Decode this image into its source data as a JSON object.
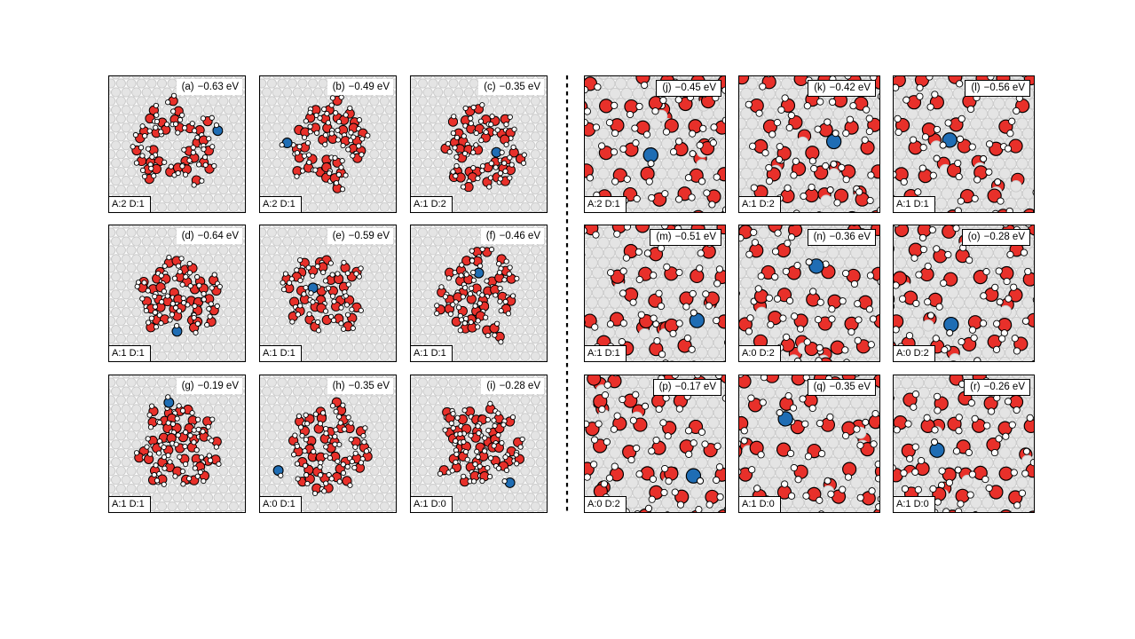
{
  "figure": {
    "description": "Adsorption structures of an ion in water layers on a metal surface, with adsorption energies and hydrogen-bond acceptor/donor counts",
    "colors": {
      "oxygen": "#e8302a",
      "hydrogen": "#ffffff",
      "ion": "#1f6db4",
      "substrate": "#e4e4e4",
      "substrate_edge": "#cbcbcb",
      "outline": "#000000",
      "panel_border": "#000000"
    },
    "divider_style": "vertical dashed line",
    "panels": [
      {
        "id": "a",
        "label": "(a)",
        "energy": "−0.63 eV",
        "acceptors_donors": "A:2 D:1",
        "side": "left",
        "blue": [
          0.8,
          0.4
        ]
      },
      {
        "id": "b",
        "label": "(b)",
        "energy": "−0.49 eV",
        "acceptors_donors": "A:2 D:1",
        "side": "left",
        "blue": [
          0.2,
          0.49
        ]
      },
      {
        "id": "c",
        "label": "(c)",
        "energy": "−0.35 eV",
        "acceptors_donors": "A:1 D:2",
        "side": "left",
        "blue": [
          0.63,
          0.56
        ]
      },
      {
        "id": "d",
        "label": "(d)",
        "energy": "−0.64 eV",
        "acceptors_donors": "A:1 D:1",
        "side": "left",
        "blue": [
          0.5,
          0.78
        ]
      },
      {
        "id": "e",
        "label": "(e)",
        "energy": "−0.59 eV",
        "acceptors_donors": "A:1 D:1",
        "side": "left",
        "blue": [
          0.39,
          0.46
        ]
      },
      {
        "id": "f",
        "label": "(f)",
        "energy": "−0.46 eV",
        "acceptors_donors": "A:1 D:1",
        "side": "left",
        "blue": [
          0.5,
          0.35
        ]
      },
      {
        "id": "g",
        "label": "(g)",
        "energy": "−0.19 eV",
        "acceptors_donors": "A:1 D:1",
        "side": "left",
        "blue": [
          0.44,
          0.2
        ]
      },
      {
        "id": "h",
        "label": "(h)",
        "energy": "−0.35 eV",
        "acceptors_donors": "A:0 D:1",
        "side": "left",
        "blue": [
          0.135,
          0.7
        ]
      },
      {
        "id": "i",
        "label": "(i)",
        "energy": "−0.28 eV",
        "acceptors_donors": "A:1 D:0",
        "side": "left",
        "blue": [
          0.73,
          0.79
        ]
      },
      {
        "id": "j",
        "label": "(j)",
        "energy": "−0.45 eV",
        "acceptors_donors": "A:2 D:1",
        "side": "right",
        "blue": [
          0.47,
          0.58
        ]
      },
      {
        "id": "k",
        "label": "(k)",
        "energy": "−0.42 eV",
        "acceptors_donors": "A:1 D:2",
        "side": "right",
        "blue": [
          0.675,
          0.48
        ]
      },
      {
        "id": "l",
        "label": "(l)",
        "energy": "−0.56 eV",
        "acceptors_donors": "A:1 D:1",
        "side": "right",
        "blue": [
          0.4,
          0.47
        ]
      },
      {
        "id": "m",
        "label": "(m)",
        "energy": "−0.51 eV",
        "acceptors_donors": "A:1 D:1",
        "side": "right",
        "blue": [
          0.8,
          0.7
        ]
      },
      {
        "id": "n",
        "label": "(n)",
        "energy": "−0.36 eV",
        "acceptors_donors": "A:0 D:2",
        "side": "right",
        "blue": [
          0.55,
          0.3
        ]
      },
      {
        "id": "o",
        "label": "(o)",
        "energy": "−0.28 eV",
        "acceptors_donors": "A:0 D:2",
        "side": "right",
        "blue": [
          0.41,
          0.73
        ]
      },
      {
        "id": "p",
        "label": "(p)",
        "energy": "−0.17 eV",
        "acceptors_donors": "A:0 D:2",
        "side": "right",
        "blue": [
          0.775,
          0.74
        ]
      },
      {
        "id": "q",
        "label": "(q)",
        "energy": "−0.35 eV",
        "acceptors_donors": "A:1 D:0",
        "side": "right",
        "blue": [
          0.33,
          0.32
        ]
      },
      {
        "id": "r",
        "label": "(r)",
        "energy": "−0.26 eV",
        "acceptors_donors": "A:1 D:0",
        "side": "right",
        "blue": [
          0.31,
          0.55
        ]
      }
    ]
  }
}
